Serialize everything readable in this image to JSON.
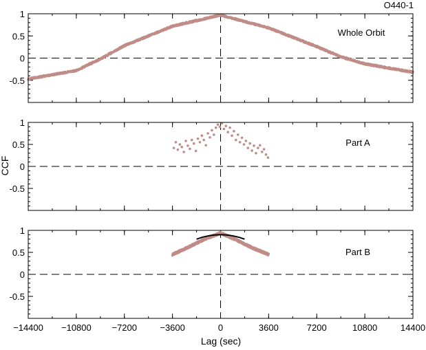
{
  "figure_label": "O440-1",
  "chart_data": [
    {
      "type": "scatter",
      "panel_label": "Whole Orbit",
      "xlim": [
        -14400,
        14400
      ],
      "ylim": [
        -1,
        1
      ],
      "y_tick_labels": [
        "1",
        "0.5",
        "0",
        "-0.5"
      ],
      "y_tick_values": [
        1,
        0.5,
        0,
        -0.5
      ],
      "reference_lines": {
        "y": 0,
        "x": 0,
        "style": "dashed"
      },
      "point_color": "#c08c88",
      "sampling_step_sec": 30,
      "scatter_band": 0.02,
      "curve_knots": {
        "x": [
          -14400,
          -10800,
          -9000,
          -7200,
          -3600,
          0,
          3600,
          7200,
          9000,
          10800,
          14400
        ],
        "y": [
          -0.47,
          -0.28,
          -0.02,
          0.28,
          0.72,
          0.97,
          0.68,
          0.26,
          0.03,
          -0.13,
          -0.32
        ]
      },
      "series": [
        {
          "style": "dense points"
        }
      ]
    },
    {
      "type": "scatter",
      "panel_label": "Part A",
      "xlim": [
        -14400,
        14400
      ],
      "ylim": [
        -1,
        1
      ],
      "y_tick_labels": [
        "1",
        "0.5",
        "0",
        "-0.5"
      ],
      "y_tick_values": [
        1,
        0.5,
        0,
        -0.5
      ],
      "reference_lines": {
        "y": 0,
        "x": 0,
        "style": "dashed"
      },
      "point_color": "#c08c88",
      "series": [
        {
          "style": "sparse points",
          "x": [
            -3500,
            -3350,
            -3200,
            -3050,
            -2900,
            -2750,
            -2600,
            -2450,
            -2300,
            -2150,
            -2000,
            -1850,
            -1700,
            -1550,
            -1400,
            -1250,
            -1100,
            -950,
            -800,
            -650,
            -500,
            -350,
            -200,
            -50,
            100,
            250,
            400,
            550,
            700,
            850,
            1000,
            1150,
            1300,
            1450,
            1600,
            1750,
            1900,
            2050,
            2200,
            2350,
            2500,
            2650,
            2800,
            2950,
            3100,
            3250,
            3400,
            3550
          ],
          "y": [
            0.42,
            0.55,
            0.38,
            0.5,
            0.44,
            0.33,
            0.58,
            0.47,
            0.4,
            0.6,
            0.52,
            0.35,
            0.63,
            0.55,
            0.7,
            0.6,
            0.48,
            0.75,
            0.66,
            0.82,
            0.72,
            0.88,
            0.95,
            0.9,
            0.98,
            0.85,
            0.92,
            0.78,
            0.88,
            0.7,
            0.8,
            0.6,
            0.72,
            0.55,
            0.65,
            0.5,
            0.58,
            0.42,
            0.52,
            0.36,
            0.47,
            0.3,
            0.42,
            0.48,
            0.33,
            0.39,
            0.27,
            0.2
          ]
        }
      ]
    },
    {
      "type": "scatter",
      "panel_label": "Part B",
      "xlim": [
        -14400,
        14400
      ],
      "ylim": [
        -1,
        1
      ],
      "y_tick_labels": [
        "1",
        "0.5",
        "0",
        "-0.5"
      ],
      "y_tick_values": [
        1,
        0.5,
        0,
        -0.5
      ],
      "reference_lines": {
        "y": 0,
        "x": 0,
        "style": "dashed"
      },
      "point_color": "#c08c88",
      "sampling_step_sec": 15,
      "scatter_band": 0.025,
      "curve_knots": {
        "x": [
          -3600,
          -2400,
          -1200,
          0,
          1200,
          2400,
          3600
        ],
        "y": [
          0.45,
          0.62,
          0.8,
          0.94,
          0.78,
          0.6,
          0.45
        ]
      },
      "series": [
        {
          "style": "dense points"
        }
      ],
      "fit": {
        "type": "line",
        "color": "#000000",
        "x": [
          -1800,
          -1400,
          -1000,
          -600,
          -200,
          0,
          200,
          600,
          1000,
          1400,
          1800
        ],
        "y": [
          0.8,
          0.84,
          0.87,
          0.89,
          0.9,
          0.9,
          0.9,
          0.89,
          0.87,
          0.84,
          0.8
        ]
      }
    }
  ],
  "x_axis": {
    "label": "Lag (sec)",
    "tick_values": [
      -14400,
      -10800,
      -7200,
      -3600,
      0,
      3600,
      7200,
      10800,
      14400
    ],
    "tick_labels": [
      "−14400",
      "−10800",
      "−7200",
      "−3600",
      "0",
      "3600",
      "7200",
      "10800",
      "14400"
    ]
  },
  "y_axis": {
    "label": "CCF"
  }
}
